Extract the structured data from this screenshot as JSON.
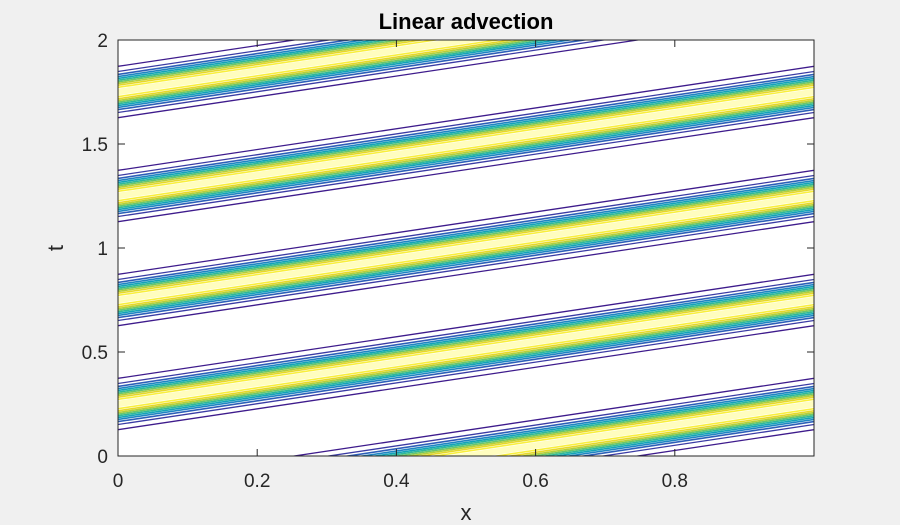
{
  "chart_data": {
    "type": "contour",
    "title": "Linear advection",
    "xlabel": "x",
    "ylabel": "t",
    "xlim": [
      0,
      1
    ],
    "ylim": [
      0,
      2
    ],
    "xticks": [
      "0",
      "0.2",
      "0.4",
      "0.6",
      "0.8"
    ],
    "yticks": [
      "0",
      "0.5",
      "1",
      "1.5",
      "2"
    ],
    "xtick_values": [
      0,
      0.2,
      0.4,
      0.6,
      0.8
    ],
    "ytick_values": [
      0,
      0.5,
      1,
      1.5,
      2
    ],
    "grid": false,
    "advection_speed": 2,
    "pulse_center": 0.5,
    "pulse_width": 0.1,
    "periodic_period": 1,
    "contour_levels": 10,
    "colormap": [
      "#3e1b8c",
      "#3a3ba4",
      "#2c5fb8",
      "#1f85c2",
      "#14a3b8",
      "#2fb89a",
      "#6cc66a",
      "#b4cf3b",
      "#e6d72a",
      "#f9ef3b",
      "#fffb8a"
    ],
    "background": "#ffffff"
  }
}
